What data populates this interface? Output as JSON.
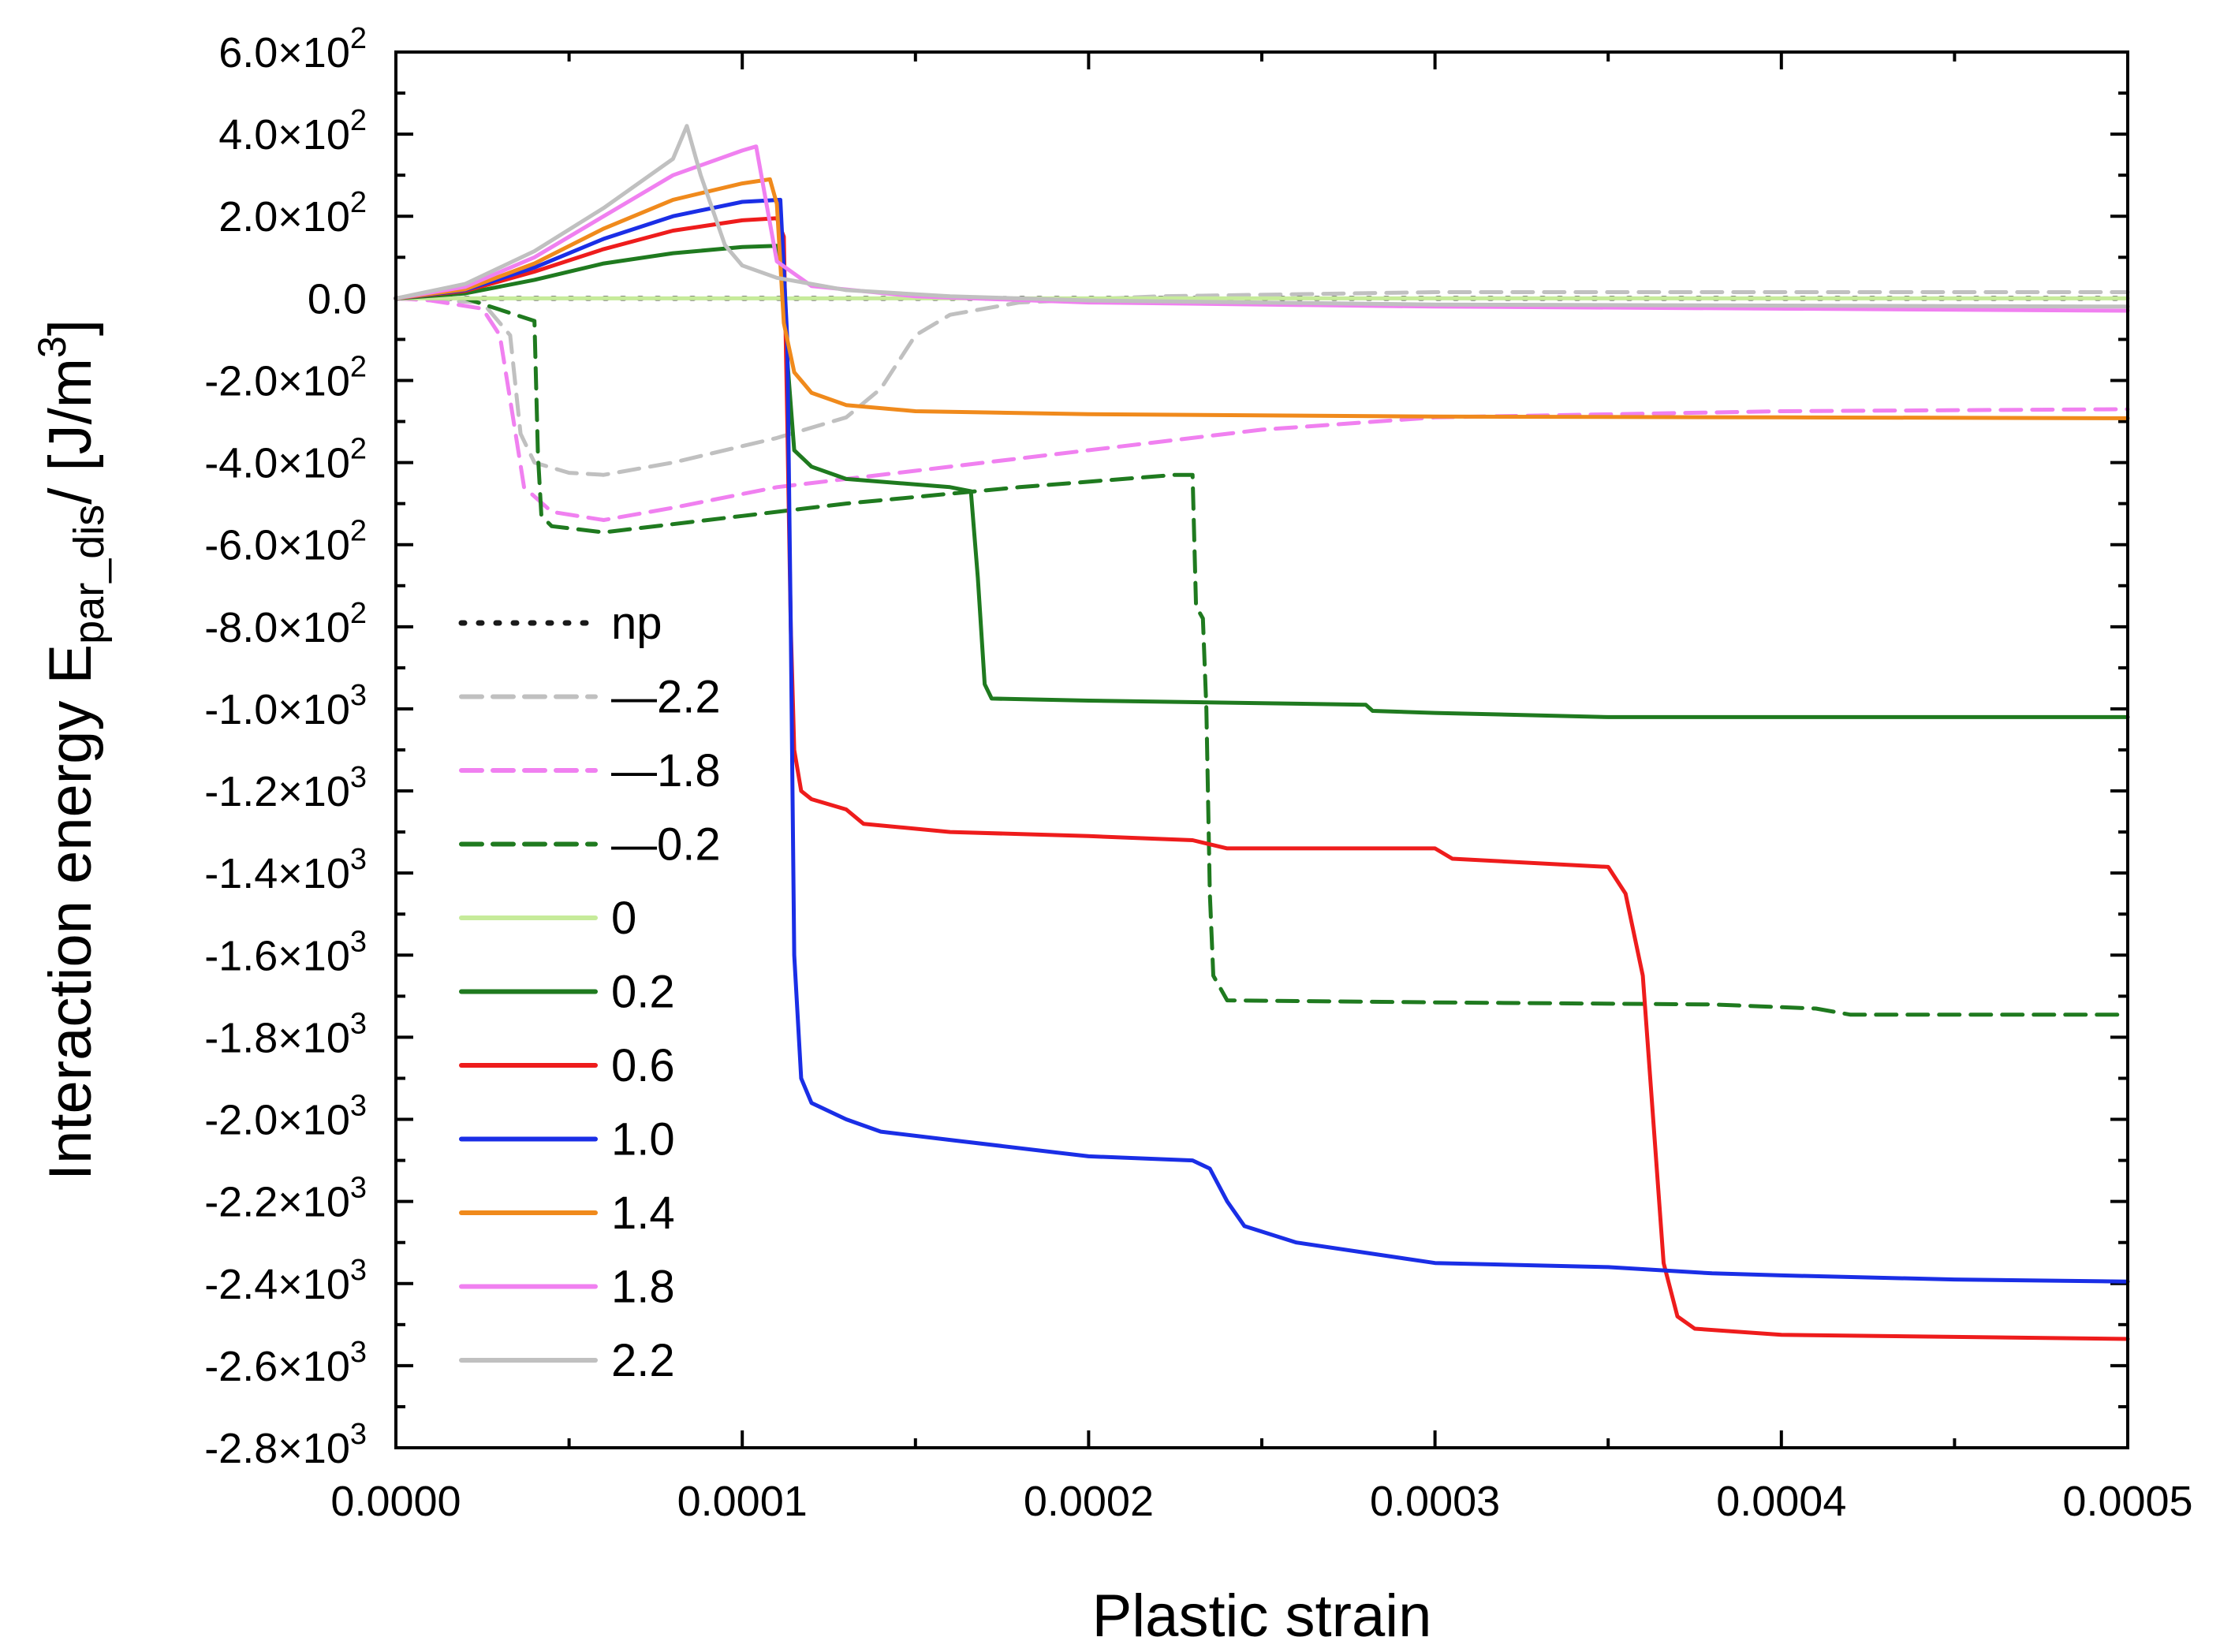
{
  "chart_data": {
    "type": "line",
    "xlabel": "Plastic strain",
    "ylabel": {
      "main": "Interaction energy E",
      "sub": "par_dis",
      "unit": "/ [J/m",
      "unit_sup": "3",
      "unit_end": "]"
    },
    "xlim": [
      0,
      0.0005
    ],
    "ylim": [
      -2800,
      600
    ],
    "x_ticks": [
      {
        "value": 0,
        "label": "0.0000"
      },
      {
        "value": 0.0001,
        "label": "0.0001"
      },
      {
        "value": 0.0002,
        "label": "0.0002"
      },
      {
        "value": 0.0003,
        "label": "0.0003"
      },
      {
        "value": 0.0004,
        "label": "0.0004"
      },
      {
        "value": 0.0005,
        "label": "0.0005"
      }
    ],
    "y_ticks": [
      {
        "value": 600,
        "mant": "6.0×10",
        "exp": "2"
      },
      {
        "value": 400,
        "mant": "4.0×10",
        "exp": "2"
      },
      {
        "value": 200,
        "mant": "2.0×10",
        "exp": "2"
      },
      {
        "value": 0,
        "mant": "0.0",
        "exp": ""
      },
      {
        "value": -200,
        "mant": "-2.0×10",
        "exp": "2"
      },
      {
        "value": -400,
        "mant": "-4.0×10",
        "exp": "2"
      },
      {
        "value": -600,
        "mant": "-6.0×10",
        "exp": "2"
      },
      {
        "value": -800,
        "mant": "-8.0×10",
        "exp": "2"
      },
      {
        "value": -1000,
        "mant": "-1.0×10",
        "exp": "3"
      },
      {
        "value": -1200,
        "mant": "-1.2×10",
        "exp": "3"
      },
      {
        "value": -1400,
        "mant": "-1.4×10",
        "exp": "3"
      },
      {
        "value": -1600,
        "mant": "-1.6×10",
        "exp": "3"
      },
      {
        "value": -1800,
        "mant": "-1.8×10",
        "exp": "3"
      },
      {
        "value": -2000,
        "mant": "-2.0×10",
        "exp": "3"
      },
      {
        "value": -2200,
        "mant": "-2.2×10",
        "exp": "3"
      },
      {
        "value": -2400,
        "mant": "-2.4×10",
        "exp": "3"
      },
      {
        "value": -2600,
        "mant": "-2.6×10",
        "exp": "3"
      },
      {
        "value": -2800,
        "mant": "-2.8×10",
        "exp": "3"
      }
    ],
    "legend_position": "left",
    "series": [
      {
        "name": "np",
        "color": "#1a1a1a",
        "style": "dotted",
        "points": [
          [
            0,
            0
          ],
          [
            0.0005,
            0
          ]
        ]
      },
      {
        "name": "—2.2",
        "color": "#c0c0c0",
        "style": "dashed",
        "points": [
          [
            0,
            0
          ],
          [
            2.5e-05,
            -10
          ],
          [
            3.3e-05,
            -90
          ],
          [
            3.6e-05,
            -330
          ],
          [
            4e-05,
            -400
          ],
          [
            5e-05,
            -425
          ],
          [
            6e-05,
            -430
          ],
          [
            8e-05,
            -400
          ],
          [
            0.00011,
            -340
          ],
          [
            0.00013,
            -290
          ],
          [
            0.00014,
            -220
          ],
          [
            0.00015,
            -90
          ],
          [
            0.00016,
            -40
          ],
          [
            0.00018,
            -10
          ],
          [
            0.00022,
            5
          ],
          [
            0.0003,
            15
          ],
          [
            0.0005,
            15
          ]
        ]
      },
      {
        "name": "—1.8",
        "color": "#f080f0",
        "style": "dashed",
        "points": [
          [
            0,
            0
          ],
          [
            1e-05,
            -5
          ],
          [
            2.5e-05,
            -25
          ],
          [
            3e-05,
            -90
          ],
          [
            3.4e-05,
            -300
          ],
          [
            3.7e-05,
            -460
          ],
          [
            4.5e-05,
            -520
          ],
          [
            6e-05,
            -540
          ],
          [
            8e-05,
            -510
          ],
          [
            0.00011,
            -460
          ],
          [
            0.00015,
            -420
          ],
          [
            0.0002,
            -370
          ],
          [
            0.00025,
            -320
          ],
          [
            0.0003,
            -290
          ],
          [
            0.0004,
            -275
          ],
          [
            0.0005,
            -270
          ]
        ]
      },
      {
        "name": "—0.2",
        "color": "#1f7a1f",
        "style": "dashed",
        "points": [
          [
            0,
            0
          ],
          [
            2e-05,
            0
          ],
          [
            4e-05,
            -55
          ],
          [
            4.1e-05,
            -380
          ],
          [
            4.2e-05,
            -530
          ],
          [
            4.5e-05,
            -555
          ],
          [
            6e-05,
            -570
          ],
          [
            8e-05,
            -550
          ],
          [
            0.0001,
            -530
          ],
          [
            0.00013,
            -500
          ],
          [
            0.00018,
            -460
          ],
          [
            0.000225,
            -430
          ],
          [
            0.00023,
            -430
          ],
          [
            0.000231,
            -750
          ],
          [
            0.000233,
            -780
          ],
          [
            0.000234,
            -1000
          ],
          [
            0.000235,
            -1450
          ],
          [
            0.000236,
            -1650
          ],
          [
            0.00024,
            -1710
          ],
          [
            0.0003,
            -1715
          ],
          [
            0.00038,
            -1720
          ],
          [
            0.00041,
            -1730
          ],
          [
            0.00042,
            -1745
          ],
          [
            0.0005,
            -1745
          ]
        ]
      },
      {
        "name": "0",
        "color": "#c6eb9a",
        "style": "solid",
        "points": [
          [
            0,
            0
          ],
          [
            0.0005,
            0
          ]
        ]
      },
      {
        "name": "0.2",
        "color": "#1f7a1f",
        "style": "solid",
        "points": [
          [
            0,
            0
          ],
          [
            2e-05,
            12
          ],
          [
            4e-05,
            45
          ],
          [
            6e-05,
            85
          ],
          [
            8e-05,
            110
          ],
          [
            0.0001,
            125
          ],
          [
            0.00011,
            128
          ],
          [
            0.000112,
            60
          ],
          [
            0.000113,
            -150
          ],
          [
            0.000115,
            -370
          ],
          [
            0.00012,
            -410
          ],
          [
            0.00013,
            -440
          ],
          [
            0.00016,
            -460
          ],
          [
            0.000166,
            -470
          ],
          [
            0.000168,
            -680
          ],
          [
            0.00017,
            -940
          ],
          [
            0.000172,
            -975
          ],
          [
            0.0002,
            -980
          ],
          [
            0.00028,
            -990
          ],
          [
            0.000282,
            -1005
          ],
          [
            0.0003,
            -1010
          ],
          [
            0.00035,
            -1020
          ],
          [
            0.0005,
            -1020
          ]
        ]
      },
      {
        "name": "0.6",
        "color": "#ee1c1c",
        "style": "solid",
        "points": [
          [
            0,
            0
          ],
          [
            2e-05,
            18
          ],
          [
            4e-05,
            65
          ],
          [
            6e-05,
            120
          ],
          [
            8e-05,
            165
          ],
          [
            0.0001,
            190
          ],
          [
            0.00011,
            195
          ],
          [
            0.000112,
            150
          ],
          [
            0.000113,
            -300
          ],
          [
            0.000114,
            -800
          ],
          [
            0.000115,
            -1100
          ],
          [
            0.000117,
            -1200
          ],
          [
            0.00012,
            -1220
          ],
          [
            0.00013,
            -1245
          ],
          [
            0.000135,
            -1280
          ],
          [
            0.00016,
            -1300
          ],
          [
            0.0002,
            -1310
          ],
          [
            0.00023,
            -1320
          ],
          [
            0.00024,
            -1340
          ],
          [
            0.0003,
            -1340
          ],
          [
            0.000305,
            -1365
          ],
          [
            0.00035,
            -1385
          ],
          [
            0.000355,
            -1450
          ],
          [
            0.00036,
            -1650
          ],
          [
            0.000363,
            -2000
          ],
          [
            0.000366,
            -2350
          ],
          [
            0.00037,
            -2480
          ],
          [
            0.000375,
            -2510
          ],
          [
            0.0004,
            -2525
          ],
          [
            0.00045,
            -2530
          ],
          [
            0.0005,
            -2535
          ]
        ]
      },
      {
        "name": "1.0",
        "color": "#1a2ee6",
        "style": "solid",
        "points": [
          [
            0,
            0
          ],
          [
            2e-05,
            20
          ],
          [
            4e-05,
            75
          ],
          [
            6e-05,
            145
          ],
          [
            8e-05,
            200
          ],
          [
            0.0001,
            235
          ],
          [
            0.000111,
            240
          ],
          [
            0.000113,
            -100
          ],
          [
            0.000114,
            -800
          ],
          [
            0.000115,
            -1600
          ],
          [
            0.000117,
            -1900
          ],
          [
            0.00012,
            -1960
          ],
          [
            0.00013,
            -2000
          ],
          [
            0.00014,
            -2030
          ],
          [
            0.00016,
            -2050
          ],
          [
            0.0002,
            -2090
          ],
          [
            0.00023,
            -2100
          ],
          [
            0.000235,
            -2120
          ],
          [
            0.00024,
            -2200
          ],
          [
            0.000245,
            -2260
          ],
          [
            0.00026,
            -2300
          ],
          [
            0.0003,
            -2350
          ],
          [
            0.00035,
            -2360
          ],
          [
            0.00038,
            -2375
          ],
          [
            0.0004,
            -2380
          ],
          [
            0.00045,
            -2390
          ],
          [
            0.0005,
            -2395
          ]
        ]
      },
      {
        "name": "1.4",
        "color": "#f08a1c",
        "style": "solid",
        "points": [
          [
            0,
            0
          ],
          [
            2e-05,
            22
          ],
          [
            4e-05,
            85
          ],
          [
            6e-05,
            170
          ],
          [
            8e-05,
            240
          ],
          [
            0.0001,
            280
          ],
          [
            0.000108,
            290
          ],
          [
            0.00011,
            230
          ],
          [
            0.000112,
            -60
          ],
          [
            0.000115,
            -180
          ],
          [
            0.00012,
            -230
          ],
          [
            0.00013,
            -260
          ],
          [
            0.00015,
            -275
          ],
          [
            0.0002,
            -282
          ],
          [
            0.0003,
            -288
          ],
          [
            0.0004,
            -290
          ],
          [
            0.0005,
            -292
          ]
        ]
      },
      {
        "name": "1.8",
        "color": "#f080f0",
        "style": "solid",
        "points": [
          [
            0,
            0
          ],
          [
            2e-05,
            28
          ],
          [
            4e-05,
            100
          ],
          [
            6e-05,
            200
          ],
          [
            8e-05,
            300
          ],
          [
            0.0001,
            360
          ],
          [
            0.000104,
            370
          ],
          [
            0.000107,
            230
          ],
          [
            0.00011,
            90
          ],
          [
            0.00012,
            30
          ],
          [
            0.00015,
            5
          ],
          [
            0.0002,
            -10
          ],
          [
            0.0003,
            -20
          ],
          [
            0.0005,
            -30
          ]
        ]
      },
      {
        "name": "2.2",
        "color": "#c0c0c0",
        "style": "solid",
        "points": [
          [
            0,
            0
          ],
          [
            2e-05,
            35
          ],
          [
            4e-05,
            115
          ],
          [
            6e-05,
            220
          ],
          [
            8e-05,
            340
          ],
          [
            8.4e-05,
            420
          ],
          [
            8.8e-05,
            300
          ],
          [
            9.5e-05,
            130
          ],
          [
            0.0001,
            80
          ],
          [
            0.00011,
            50
          ],
          [
            0.00013,
            20
          ],
          [
            0.00016,
            5
          ],
          [
            0.0002,
            -5
          ],
          [
            0.0003,
            -15
          ],
          [
            0.0005,
            -20
          ]
        ]
      }
    ]
  }
}
